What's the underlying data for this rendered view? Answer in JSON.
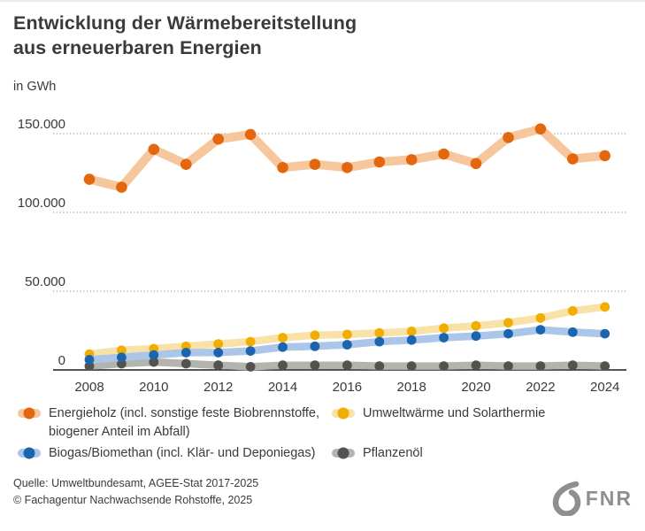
{
  "header": {
    "title_line1": "Entwicklung der Wärmebereitstellung",
    "title_line2": "aus erneuerbaren Energien",
    "unit_label": "in GWh"
  },
  "chart_data": {
    "type": "line",
    "title": "Entwicklung der Wärmebereitstellung aus erneuerbaren Energien",
    "ylabel": "in GWh",
    "xlabel": "",
    "ylim": [
      0,
      160000
    ],
    "grid": "horizontal-dotted",
    "legend_position": "bottom",
    "x": [
      2008,
      2009,
      2010,
      2011,
      2012,
      2013,
      2014,
      2015,
      2016,
      2017,
      2018,
      2019,
      2020,
      2021,
      2022,
      2023,
      2024
    ],
    "x_tick_labels": [
      "2008",
      "2010",
      "2012",
      "2014",
      "2016",
      "2018",
      "2020",
      "2022",
      "2024"
    ],
    "y_ticks": [
      0,
      50000,
      100000,
      150000
    ],
    "y_tick_labels": [
      "0",
      "50.000",
      "100.000",
      "150.000"
    ],
    "series": [
      {
        "name": "Energieholz (incl. sonstige feste Biobrennstoffe, biogener Anteil im Abfall)",
        "color": "#e2670e",
        "band_color": "#f6c69c",
        "values": [
          121000,
          116000,
          140000,
          130500,
          146500,
          149500,
          128500,
          130500,
          128500,
          132000,
          133500,
          137000,
          131000,
          147500,
          153000,
          134000,
          136000
        ]
      },
      {
        "name": "Umweltwärme und Solarthermie",
        "color": "#f1ad00",
        "band_color": "#f9e2a8",
        "values": [
          10000,
          12500,
          13500,
          15000,
          16500,
          18000,
          20500,
          22000,
          22500,
          23500,
          24500,
          26500,
          28000,
          30000,
          33000,
          37500,
          40000
        ]
      },
      {
        "name": "Biogas/Biomethan (incl. Klär- und Deponiegas)",
        "color": "#1c64ae",
        "band_color": "#abc6e8",
        "values": [
          6500,
          8000,
          9500,
          11000,
          11000,
          12000,
          14500,
          15000,
          16000,
          18000,
          19000,
          20500,
          21500,
          23000,
          25500,
          24000,
          23000
        ]
      },
      {
        "name": "Pflanzenöl",
        "color": "#52524f",
        "band_color": "#b4b4af",
        "values": [
          2500,
          4000,
          5000,
          4000,
          3000,
          2000,
          3000,
          3000,
          3000,
          2500,
          2500,
          2500,
          3000,
          2500,
          2500,
          3000,
          2500
        ]
      }
    ]
  },
  "legend": {
    "items": [
      {
        "label": "Energieholz (incl. sonstige feste Biobrennstoffe, biogener Anteil im Abfall)",
        "series": 0
      },
      {
        "label": "Umweltwärme und Solarthermie",
        "series": 1
      },
      {
        "label": "Biogas/Biomethan (incl. Klär- und Deponiegas)",
        "series": 2
      },
      {
        "label": "Pflanzenöl",
        "series": 3
      }
    ]
  },
  "footer": {
    "source_line1": "Quelle: Umweltbundesamt, AGEE-Stat 2017-2025",
    "source_line2": "© Fachagentur Nachwachsende Rohstoffe, 2025",
    "logo_text": "FNR"
  }
}
